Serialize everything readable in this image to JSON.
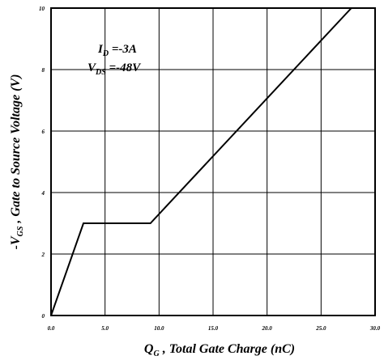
{
  "chart_data": {
    "type": "line",
    "xlabel": {
      "prefix": "Q",
      "sub": "G",
      "suffix": " , Total Gate Charge (nC)"
    },
    "ylabel": {
      "prefix": "-V",
      "sub": "GS",
      "suffix": " , Gate to Source Voltage (V)"
    },
    "xlim": [
      0,
      30
    ],
    "ylim": [
      0,
      10
    ],
    "x_ticks": [
      0,
      5,
      10,
      15,
      20,
      25,
      30
    ],
    "x_tick_labels": [
      "0.0",
      "5.0",
      "10.0",
      "15.0",
      "20.0",
      "25.0",
      "30.0"
    ],
    "y_ticks": [
      0,
      2,
      4,
      6,
      8,
      10
    ],
    "y_tick_labels": [
      "0",
      "2",
      "4",
      "6",
      "8",
      "10"
    ],
    "grid": true,
    "annotations": [
      {
        "prefix": "I",
        "sub": "D",
        "suffix": " =-3A"
      },
      {
        "prefix": "V",
        "sub": "DS",
        "suffix": " =-48V"
      }
    ],
    "series": [
      {
        "color": "#000000",
        "x": [
          0,
          3.0,
          9.2,
          27.8
        ],
        "y": [
          0,
          3.0,
          3.0,
          10
        ]
      }
    ]
  }
}
